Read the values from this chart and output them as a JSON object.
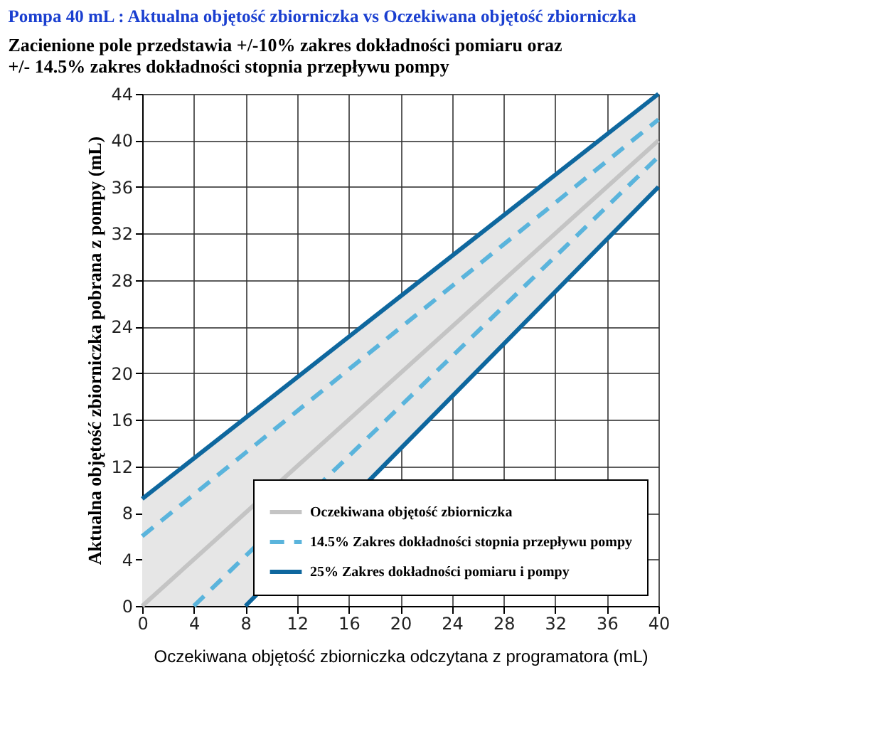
{
  "chart_data": {
    "type": "line",
    "title": "Pompa 40 mL : Aktualna  objętość zbiorniczka vs  Oczekiwana objętość zbiorniczka",
    "subtitle": [
      "Zacienione pole przedstawia +/-10% zakres dokładności pomiaru oraz",
      "+/- 14.5% zakres dokładności stopnia przepływu pompy"
    ],
    "xlabel": "Oczekiwana objętość zbiorniczka odczytana z programatora (mL)",
    "ylabel": "Aktualna objętość zbiorniczka pobrana z pompy (mL)",
    "xlim": [
      0,
      40
    ],
    "xticks": [
      0,
      4,
      8,
      12,
      16,
      20,
      24,
      28,
      32,
      36,
      40
    ],
    "ylim": [
      0,
      44
    ],
    "yticks": [
      0,
      4,
      8,
      12,
      16,
      20,
      24,
      28,
      32,
      36,
      40,
      44
    ],
    "grid": true,
    "legend": "bottom right",
    "series": [
      {
        "name": "Oczekiwana objętość zbiorniczka",
        "color": "#c4c4c4",
        "line_style": "solid",
        "x": [
          0,
          8,
          40
        ],
        "values": [
          0,
          8,
          40
        ],
        "lower": [
          0,
          0,
          36
        ],
        "upper": [
          9.2,
          16.2,
          44
        ]
      },
      {
        "name": "14.5% Zakres dokładności stopnia przepływu pompy",
        "color": "#5ab4dc",
        "line_style": "dashed",
        "x": [
          0,
          40
        ],
        "values": [
          6,
          41.8
        ]
      },
      {
        "color": "#5ab4dc",
        "line_style": "dashed",
        "x": [
          4,
          40
        ],
        "values": [
          0,
          38.6
        ]
      },
      {
        "name": "25% Zakres dokładności pomiaru i pompy",
        "color": "#0e679e",
        "line_style": "solid",
        "x": [
          0,
          40
        ],
        "values": [
          9.2,
          44
        ]
      },
      {
        "color": "#0e679e",
        "line_style": "solid",
        "x": [
          8,
          40
        ],
        "values": [
          0,
          36
        ]
      }
    ]
  }
}
